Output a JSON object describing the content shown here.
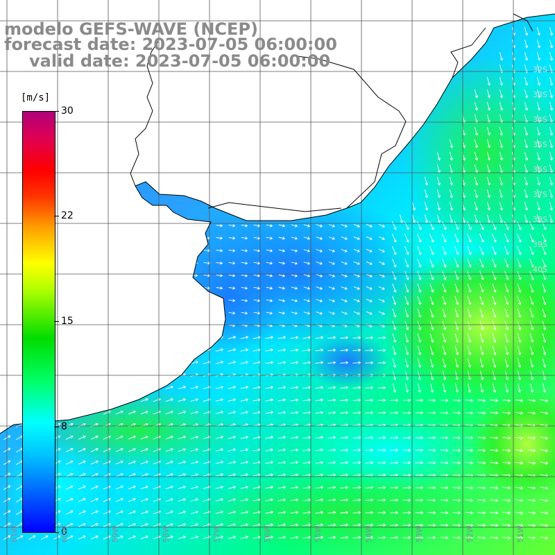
{
  "header": {
    "line1": "modelo GEFS-WAVE (NCEP)",
    "line2": "forecast date: 2023-07-05 06:00:00",
    "line3": "valid date: 2023-07-05 06:00:00"
  },
  "colorbar": {
    "units": "[m/s]",
    "ticks": [
      "30",
      "22",
      "15",
      "8",
      "0"
    ],
    "min": 0,
    "max": 30
  },
  "grid": {
    "lat_labels": [
      "32S",
      "33S",
      "34S",
      "35S",
      "36S",
      "37S",
      "38S",
      "39S",
      "40S"
    ],
    "lon_labels": [
      "61W",
      "60W",
      "59W",
      "58W",
      "57W",
      "56W",
      "55W",
      "54W",
      "53W",
      "52W",
      "51W"
    ]
  },
  "colors": {
    "land": "#ffffff",
    "coast": "#000000",
    "grid": "#555555",
    "arrows": "#ffffff",
    "header_text": "#8a8a8a"
  }
}
